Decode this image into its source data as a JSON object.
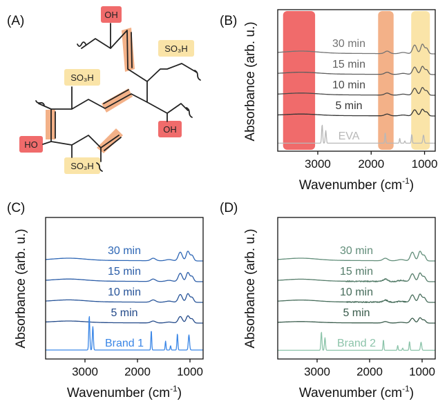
{
  "panels": {
    "A": {
      "label": "(A)",
      "groups": {
        "oh_top": "OH",
        "so3h_top": "SO₃H",
        "so3h_left": "SO₃H",
        "oh_right": "OH",
        "ho_left": "HO",
        "so3h_bottom": "SO₃H"
      }
    },
    "B": {
      "label": "(B)"
    },
    "C": {
      "label": "(C)"
    },
    "D": {
      "label": "(D)"
    }
  },
  "colors": {
    "band_oh": "#f06b6b",
    "band_cc": "#f3b188",
    "band_so3h": "#fae4a8",
    "panel_b_dark": "#1f1f1f",
    "panel_b_light": "#b8b8b8",
    "panel_c_dark": "#1e3f7a",
    "panel_c_light": "#3a86e6",
    "panel_d_dark": "#2c4a3c",
    "panel_d_light": "#8cc4aa"
  },
  "chart_data": [
    {
      "panel": "B",
      "type": "line",
      "xlabel": "Wavenumber (cm",
      "xlabel_sup": "-1",
      "xlabel_close": ")",
      "ylabel": "Absorbance (arb. u.)",
      "x_reversed": true,
      "xlim": [
        3750,
        800
      ],
      "xticks": [
        3000,
        2000,
        1000
      ],
      "xtick_labels": [
        "3000",
        "2000",
        "1000"
      ],
      "highlight_bands": [
        {
          "group": "O-H",
          "x": [
            3650,
            3050
          ]
        },
        {
          "group": "C=C",
          "x": [
            1870,
            1580
          ]
        },
        {
          "group": "SO3H",
          "x": [
            1250,
            900
          ]
        }
      ],
      "series": [
        {
          "name": "30 min",
          "offset": 4,
          "style": "cured",
          "scale": 1.0
        },
        {
          "name": "15 min",
          "offset": 3,
          "style": "cured",
          "scale": 0.85
        },
        {
          "name": "10 min",
          "offset": 2,
          "style": "cured",
          "scale": 0.8
        },
        {
          "name": "5 min",
          "offset": 1,
          "style": "cured",
          "scale": 0.7
        },
        {
          "name": "EVA",
          "offset": 0,
          "style": "raw",
          "scale": 1.0
        }
      ]
    },
    {
      "panel": "C",
      "type": "line",
      "xlabel": "Wavenumber (cm",
      "xlabel_sup": "-1",
      "xlabel_close": ")",
      "ylabel": "Absorbance (arb. u.)",
      "x_reversed": true,
      "xlim": [
        3750,
        750
      ],
      "xticks": [
        3000,
        2000,
        1000
      ],
      "xtick_labels": [
        "3000",
        "2000",
        "1000"
      ],
      "series": [
        {
          "name": "30 min",
          "offset": 4,
          "style": "cured",
          "scale": 1.0
        },
        {
          "name": "15 min",
          "offset": 3,
          "style": "cured",
          "scale": 0.95
        },
        {
          "name": "10 min",
          "offset": 2,
          "style": "cured",
          "scale": 0.9
        },
        {
          "name": "5 min",
          "offset": 1,
          "style": "cured",
          "scale": 0.75
        },
        {
          "name": "Brand 1",
          "offset": 0,
          "style": "raw",
          "scale": 1.0
        }
      ]
    },
    {
      "panel": "D",
      "type": "line",
      "xlabel": "Wavenumber (cm",
      "xlabel_sup": "-1",
      "xlabel_close": ")",
      "ylabel": "Absorbance (arb. u.)",
      "x_reversed": true,
      "xlim": [
        3750,
        750
      ],
      "xticks": [
        3000,
        2000,
        1000
      ],
      "xtick_labels": [
        "3000",
        "2000",
        "1000"
      ],
      "series": [
        {
          "name": "30 min",
          "offset": 4,
          "style": "cured",
          "scale": 1.0
        },
        {
          "name": "15 min",
          "offset": 3,
          "style": "noisy",
          "scale": 0.9
        },
        {
          "name": "10 min",
          "offset": 2,
          "style": "noisy",
          "scale": 0.85
        },
        {
          "name": "5 min",
          "offset": 1,
          "style": "cured",
          "scale": 0.55
        },
        {
          "name": "Brand 2",
          "offset": 0,
          "style": "raw",
          "scale": 1.0
        }
      ]
    }
  ]
}
